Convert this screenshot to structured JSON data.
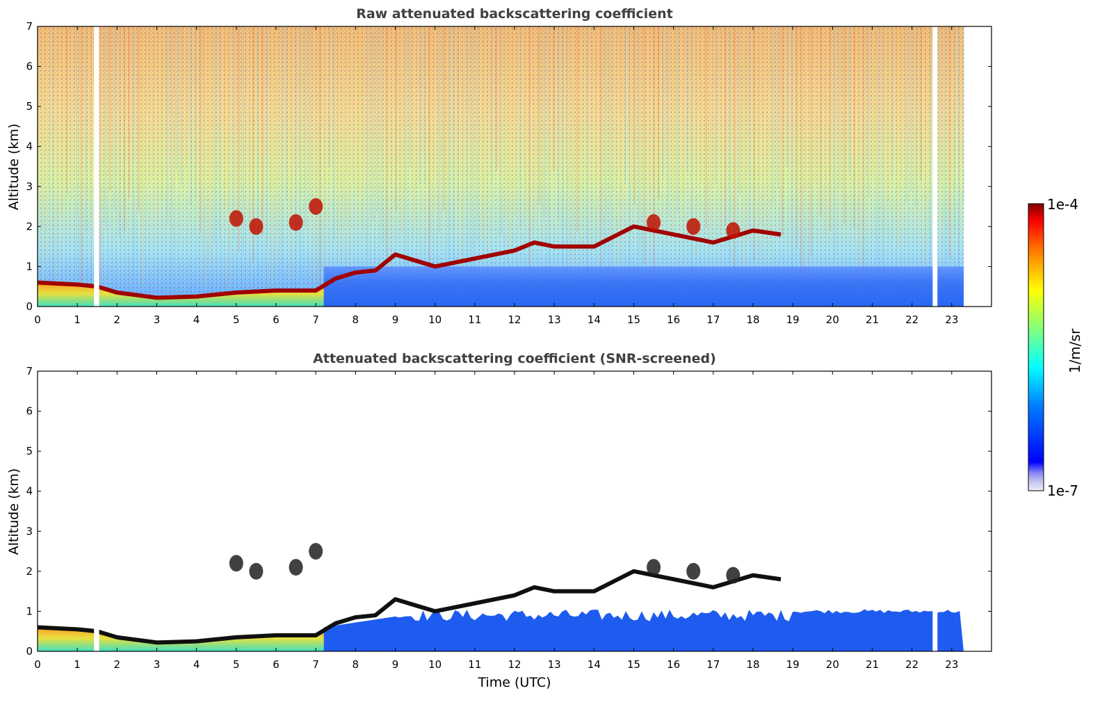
{
  "chart_data": [
    {
      "type": "heatmap",
      "title": "Raw attenuated backscattering coefficient",
      "xlabel": "",
      "ylabel": "Altitude (km)",
      "xlim": [
        0,
        24
      ],
      "ylim": [
        0,
        7
      ],
      "x_ticks": [
        0,
        1,
        2,
        3,
        4,
        5,
        6,
        7,
        8,
        9,
        10,
        11,
        12,
        13,
        14,
        15,
        16,
        17,
        18,
        19,
        20,
        21,
        22,
        23
      ],
      "y_ticks": [
        0,
        1,
        2,
        3,
        4,
        5,
        6,
        7
      ],
      "data_extent_hours": [
        0,
        23.3
      ],
      "gaps_hours": [
        [
          1.42,
          1.55
        ],
        [
          22.52,
          22.64
        ]
      ],
      "cloud_base_km": [
        [
          0,
          0.6
        ],
        [
          1,
          0.55
        ],
        [
          1.5,
          0.5
        ],
        [
          2,
          0.35
        ],
        [
          3,
          0.22
        ],
        [
          4,
          0.25
        ],
        [
          5,
          0.35
        ],
        [
          6,
          0.4
        ],
        [
          7,
          0.4
        ],
        [
          7.5,
          0.7
        ],
        [
          8,
          0.85
        ],
        [
          8.5,
          0.9
        ],
        [
          9,
          1.3
        ],
        [
          10,
          1.0
        ],
        [
          11,
          1.2
        ],
        [
          12,
          1.4
        ],
        [
          12.5,
          1.6
        ],
        [
          13,
          1.5
        ],
        [
          14,
          1.5
        ],
        [
          15,
          2.0
        ],
        [
          16,
          1.8
        ],
        [
          17,
          1.6
        ],
        [
          18,
          1.9
        ],
        [
          18.7,
          1.8
        ]
      ],
      "elevated_layers": [
        [
          5,
          2.2
        ],
        [
          5.5,
          2.0
        ],
        [
          6.5,
          2.1
        ],
        [
          7,
          2.5
        ],
        [
          15.5,
          2.1
        ],
        [
          16.5,
          2.0
        ],
        [
          17.5,
          1.9
        ]
      ],
      "grid": false
    },
    {
      "type": "heatmap",
      "title": "Attenuated backscattering coefficient (SNR-screened)",
      "xlabel": "Time (UTC)",
      "ylabel": "Altitude (km)",
      "xlim": [
        0,
        24
      ],
      "ylim": [
        0,
        7
      ],
      "x_ticks": [
        0,
        1,
        2,
        3,
        4,
        5,
        6,
        7,
        8,
        9,
        10,
        11,
        12,
        13,
        14,
        15,
        16,
        17,
        18,
        19,
        20,
        21,
        22,
        23
      ],
      "y_ticks": [
        0,
        1,
        2,
        3,
        4,
        5,
        6,
        7
      ],
      "data_extent_hours": [
        0,
        23.3
      ],
      "grid": false
    }
  ],
  "colorbar": {
    "label": "1/m/sr",
    "max_label": "1e-4",
    "min_label": "1e-7",
    "colormap": "jet",
    "colors": [
      "#e6e6f5",
      "#c8c8f0",
      "#0000ff",
      "#0080ff",
      "#00ffff",
      "#80ff80",
      "#ffff00",
      "#ff8000",
      "#ff0000",
      "#800000"
    ]
  }
}
